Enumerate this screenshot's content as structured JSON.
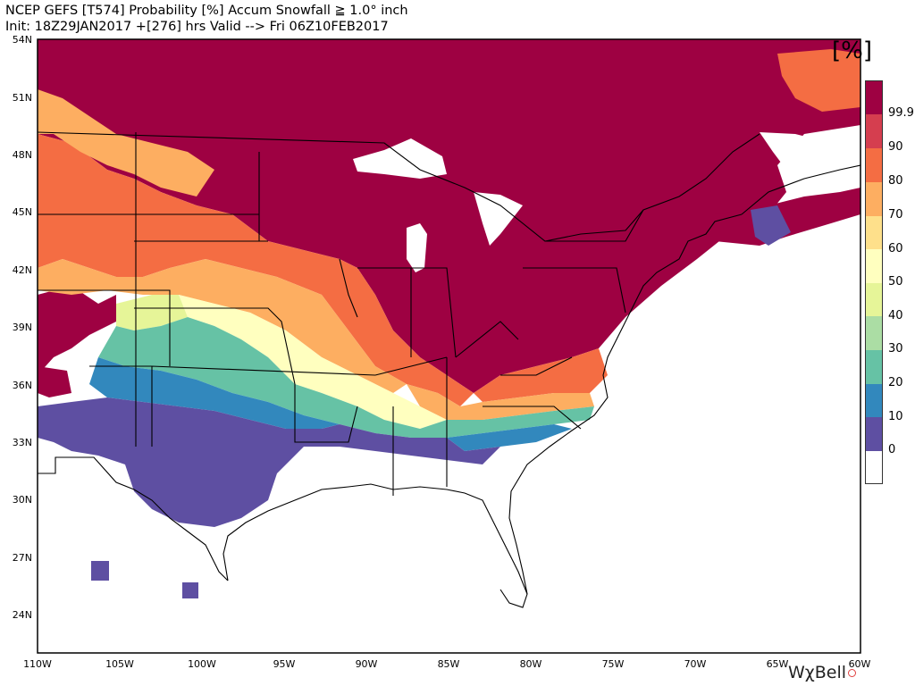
{
  "header": {
    "title": "NCEP GEFS [T574] Probability [%] Accum Snowfall ≧ 1.0° inch",
    "subtitle": "Init: 18Z29JAN2017   +[276] hrs Valid --> Fri 06Z10FEB2017"
  },
  "map": {
    "lat_labels": [
      "54N",
      "51N",
      "48N",
      "45N",
      "42N",
      "39N",
      "36N",
      "33N",
      "30N",
      "27N",
      "24N"
    ],
    "lon_labels": [
      "110W",
      "105W",
      "100W",
      "95W",
      "90W",
      "85W",
      "80W",
      "75W",
      "70W",
      "65W",
      "60W"
    ]
  },
  "colorbar": {
    "units": "[%]",
    "labels": [
      "99.9",
      "90",
      "80",
      "70",
      "60",
      "50",
      "40",
      "30",
      "20",
      "10",
      "0"
    ],
    "colors": [
      "#9e0142",
      "#d53e4f",
      "#f46d43",
      "#fdae61",
      "#fee08b",
      "#ffffbf",
      "#e6f598",
      "#abdda4",
      "#66c2a5",
      "#3288bd",
      "#5e4fa2",
      "#ffffff"
    ]
  },
  "branding": {
    "text": "WχBell"
  }
}
